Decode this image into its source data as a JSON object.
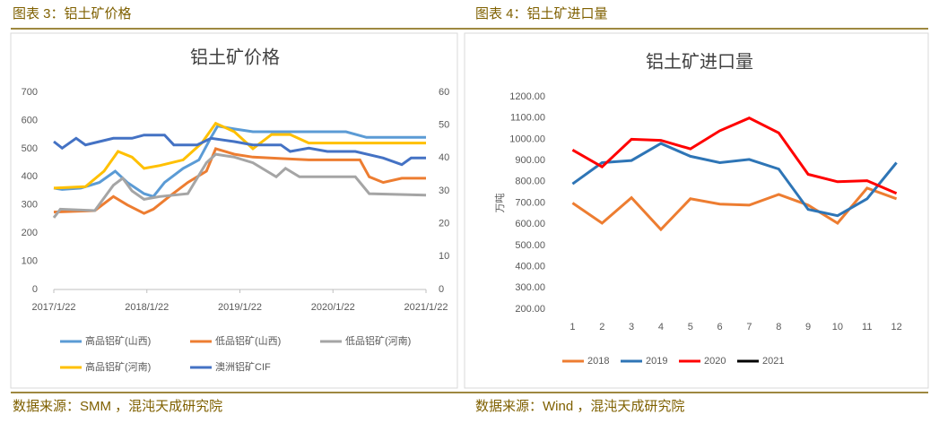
{
  "figures": [
    {
      "caption": "图表 3：铝土矿价格",
      "source": "数据来源：SMM ，混沌天成研究院"
    },
    {
      "caption": "图表 4：铝土矿进口量",
      "source": "数据来源：Wind ，混沌天成研究院"
    }
  ],
  "chart_data": [
    {
      "type": "line",
      "title": "铝土矿价格",
      "xlim": [
        2017.06,
        2021.06
      ],
      "xticks": [
        {
          "value": 2017.06,
          "label": "2017/1/22"
        },
        {
          "value": 2018.06,
          "label": "2018/1/22"
        },
        {
          "value": 2019.06,
          "label": "2019/1/22"
        },
        {
          "value": 2020.06,
          "label": "2020/1/22"
        },
        {
          "value": 2021.06,
          "label": "2021/1/22"
        }
      ],
      "ylim": [
        0,
        700
      ],
      "yticks": [
        0,
        100,
        200,
        300,
        400,
        500,
        600,
        700
      ],
      "y2lim": [
        0,
        60
      ],
      "y2ticks": [
        0,
        10,
        20,
        30,
        40,
        50,
        60
      ],
      "series": [
        {
          "name": "高品铝矿(山西)",
          "color": "#5b9bd5",
          "x": [
            2017.06,
            2017.15,
            2017.35,
            2017.55,
            2017.72,
            2017.85,
            2018.03,
            2018.13,
            2018.25,
            2018.45,
            2018.62,
            2018.75,
            2018.82,
            2019.0,
            2019.2,
            2019.4,
            2019.6,
            2019.8,
            2020.0,
            2020.2,
            2020.42,
            2020.6,
            2021.06
          ],
          "values": [
            360,
            355,
            360,
            380,
            420,
            380,
            340,
            330,
            380,
            430,
            460,
            540,
            580,
            570,
            560,
            560,
            560,
            560,
            560,
            560,
            540,
            540,
            540
          ]
        },
        {
          "name": "低品铝矿(山西)",
          "color": "#ed7d31",
          "x": [
            2017.06,
            2017.5,
            2017.7,
            2017.85,
            2018.03,
            2018.13,
            2018.3,
            2018.5,
            2018.7,
            2018.8,
            2019.0,
            2019.2,
            2019.5,
            2019.8,
            2020.0,
            2020.35,
            2020.45,
            2020.6,
            2020.8,
            2021.06
          ],
          "values": [
            275,
            280,
            330,
            300,
            270,
            285,
            330,
            380,
            420,
            500,
            480,
            470,
            465,
            460,
            460,
            460,
            400,
            380,
            395,
            395
          ]
        },
        {
          "name": "低品铝矿(河南)",
          "color": "#a5a5a5",
          "x": [
            2017.06,
            2017.13,
            2017.5,
            2017.7,
            2017.8,
            2017.9,
            2018.03,
            2018.2,
            2018.5,
            2018.7,
            2018.8,
            2019.0,
            2019.2,
            2019.45,
            2019.55,
            2019.7,
            2020.0,
            2020.3,
            2020.45,
            2021.06
          ],
          "values": [
            255,
            285,
            280,
            370,
            395,
            350,
            320,
            330,
            340,
            450,
            480,
            470,
            450,
            400,
            430,
            400,
            400,
            400,
            340,
            335
          ]
        },
        {
          "name": "高品铝矿(河南)",
          "color": "#ffc000",
          "x": [
            2017.06,
            2017.4,
            2017.6,
            2017.75,
            2017.9,
            2018.03,
            2018.2,
            2018.45,
            2018.65,
            2018.8,
            2019.0,
            2019.2,
            2019.4,
            2019.6,
            2019.8,
            2020.0,
            2021.06
          ],
          "values": [
            360,
            365,
            420,
            490,
            470,
            430,
            440,
            460,
            520,
            590,
            560,
            500,
            550,
            550,
            520,
            520,
            520
          ]
        },
        {
          "name": "澳洲铝矿CIF",
          "color": "#4472c4",
          "axis": "y2",
          "x": [
            2017.06,
            2017.15,
            2017.3,
            2017.4,
            2017.55,
            2017.7,
            2017.9,
            2018.03,
            2018.25,
            2018.35,
            2018.6,
            2018.75,
            2019.0,
            2019.2,
            2019.5,
            2019.6,
            2019.8,
            2020.0,
            2020.3,
            2020.6,
            2020.8,
            2020.9,
            2021.06
          ],
          "values": [
            45,
            43,
            46,
            44,
            45,
            46,
            46,
            47,
            47,
            44,
            44,
            46,
            45,
            44,
            44,
            42,
            43,
            42,
            42,
            40,
            38,
            40,
            40
          ]
        }
      ]
    },
    {
      "type": "line",
      "title": "铝土矿进口量",
      "y_label": "万吨",
      "categories": [
        "1",
        "2",
        "3",
        "4",
        "5",
        "6",
        "7",
        "8",
        "9",
        "10",
        "11",
        "12"
      ],
      "ylim": [
        200,
        1200
      ],
      "yticks": [
        {
          "value": 200,
          "label": "200.00"
        },
        {
          "value": 300,
          "label": "300.00"
        },
        {
          "value": 400,
          "label": "400.00"
        },
        {
          "value": 500,
          "label": "500.00"
        },
        {
          "value": 600,
          "label": "600.00"
        },
        {
          "value": 700,
          "label": "700.00"
        },
        {
          "value": 800,
          "label": "800.00"
        },
        {
          "value": 900,
          "label": "900.00"
        },
        {
          "value": 1000,
          "label": "1000.00"
        },
        {
          "value": 1100,
          "label": "1100.00"
        },
        {
          "value": 1200,
          "label": "1200.00"
        }
      ],
      "series": [
        {
          "name": "2018",
          "color": "#ed7d31",
          "values": [
            700,
            605,
            725,
            575,
            720,
            695,
            690,
            740,
            690,
            605,
            770,
            720
          ]
        },
        {
          "name": "2019",
          "color": "#2e75b6",
          "values": [
            790,
            890,
            900,
            980,
            920,
            890,
            905,
            860,
            670,
            640,
            720,
            890
          ]
        },
        {
          "name": "2020",
          "color": "#ff0000",
          "values": [
            950,
            870,
            1000,
            995,
            955,
            1040,
            1100,
            1030,
            835,
            800,
            805,
            745
          ]
        },
        {
          "name": "2021",
          "color": "#000000",
          "values": [
            null,
            null,
            null,
            null,
            null,
            null,
            null,
            null,
            null,
            null,
            null,
            null
          ]
        }
      ]
    }
  ]
}
